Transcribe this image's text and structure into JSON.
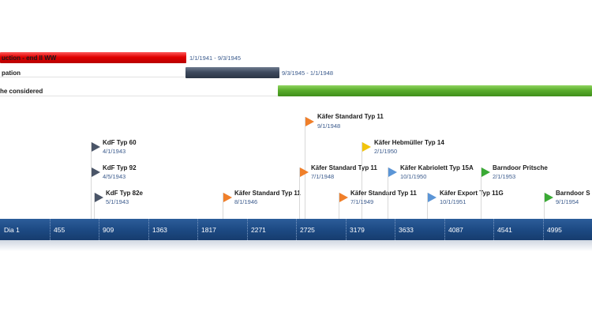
{
  "phases": [
    {
      "label": "uction - end II WW",
      "dates": "1/1/1941 - 9/3/1945",
      "color": "#e00000"
    },
    {
      "label": "pation",
      "dates": "9/3/1945 - 1/1/1948",
      "color": "#3e4a5e"
    },
    {
      "label": "he considered",
      "dates": "",
      "color": "#5aad2c"
    }
  ],
  "milestones": [
    {
      "title": "KdF Typ 60",
      "date": "4/1/1943",
      "color": "#4a5568"
    },
    {
      "title": "KdF Typ 92",
      "date": "4/5/1943",
      "color": "#4a5568"
    },
    {
      "title": "KdF Typ 82e",
      "date": "5/1/1943",
      "color": "#4a5568"
    },
    {
      "title": "Käfer Standard Typ 11",
      "date": "8/1/1946",
      "color": "#f07f2a"
    },
    {
      "title": "Käfer Standard Typ 11",
      "date": "9/1/1948",
      "color": "#f07f2a"
    },
    {
      "title": "Käfer Standard Typ 11",
      "date": "7/1/1948",
      "color": "#f07f2a"
    },
    {
      "title": "Käfer Hebmüller Typ 14",
      "date": "2/1/1950",
      "color": "#f2c40c"
    },
    {
      "title": "Käfer Standard Typ 11",
      "date": "7/1/1949",
      "color": "#f07f2a"
    },
    {
      "title": "Käfer Kabriolett Typ 15A",
      "date": "10/1/1950",
      "color": "#5b95d6"
    },
    {
      "title": "Käfer Export Typ 11G",
      "date": "10/1/1951",
      "color": "#5b95d6"
    },
    {
      "title": "Barndoor Pritsche",
      "date": "2/1/1953",
      "color": "#3aaa35"
    },
    {
      "title": "Barndoor S",
      "date": "9/1/1954",
      "color": "#3aaa35"
    }
  ],
  "axis": {
    "labels": [
      "Dia 1",
      "455",
      "909",
      "1363",
      "1817",
      "2271",
      "2725",
      "3179",
      "3633",
      "4087",
      "4541",
      "4995"
    ],
    "color": "#1d4a84"
  }
}
